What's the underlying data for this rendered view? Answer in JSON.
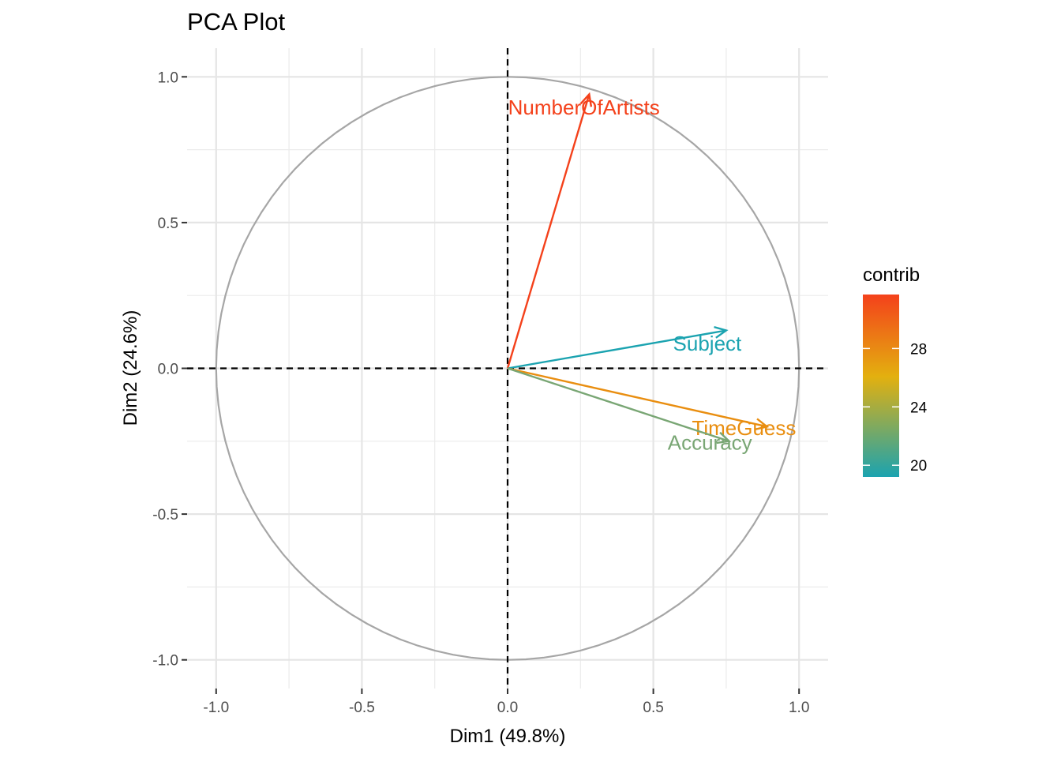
{
  "chart_data": {
    "type": "scatter",
    "subtype": "pca-variable-correlation-circle",
    "title": "PCA Plot",
    "xlabel": "Dim1 (49.8%)",
    "ylabel": "Dim2 (24.6%)",
    "xlim": [
      -1.1,
      1.1
    ],
    "ylim": [
      -1.1,
      1.1
    ],
    "xticks": [
      {
        "value": -1.0,
        "label": "-1.0"
      },
      {
        "value": -0.5,
        "label": "-0.5"
      },
      {
        "value": 0.0,
        "label": "0.0"
      },
      {
        "value": 0.5,
        "label": "0.5"
      },
      {
        "value": 1.0,
        "label": "1.0"
      }
    ],
    "yticks": [
      {
        "value": 1.0,
        "label": "1.0"
      },
      {
        "value": 0.5,
        "label": "0.5"
      },
      {
        "value": 0.0,
        "label": "0.0"
      },
      {
        "value": -0.5,
        "label": "-0.5"
      },
      {
        "value": -1.0,
        "label": "-1.0"
      }
    ],
    "grid": true,
    "unit_circle": true,
    "variables": [
      {
        "name": "NumberOfArtists",
        "x": 0.28,
        "y": 0.94,
        "contrib": 31.7,
        "color": "#f4411b"
      },
      {
        "name": "Subject",
        "x": 0.75,
        "y": 0.13,
        "contrib": 19.2,
        "color": "#1ba3b0"
      },
      {
        "name": "TimeGuess",
        "x": 0.89,
        "y": -0.2,
        "contrib": 27.5,
        "color": "#e98e10"
      },
      {
        "name": "Accuracy",
        "x": 0.76,
        "y": -0.25,
        "contrib": 21.6,
        "color": "#79a674"
      }
    ],
    "legend": {
      "title": "contrib",
      "position": "right",
      "range": [
        19.2,
        31.7
      ],
      "ticks": [
        {
          "value": 28,
          "label": "28"
        },
        {
          "value": 24,
          "label": "24"
        },
        {
          "value": 20,
          "label": "20"
        }
      ],
      "gradient": [
        "#1ba3b0",
        "#e3b00f",
        "#f4411b"
      ]
    }
  }
}
